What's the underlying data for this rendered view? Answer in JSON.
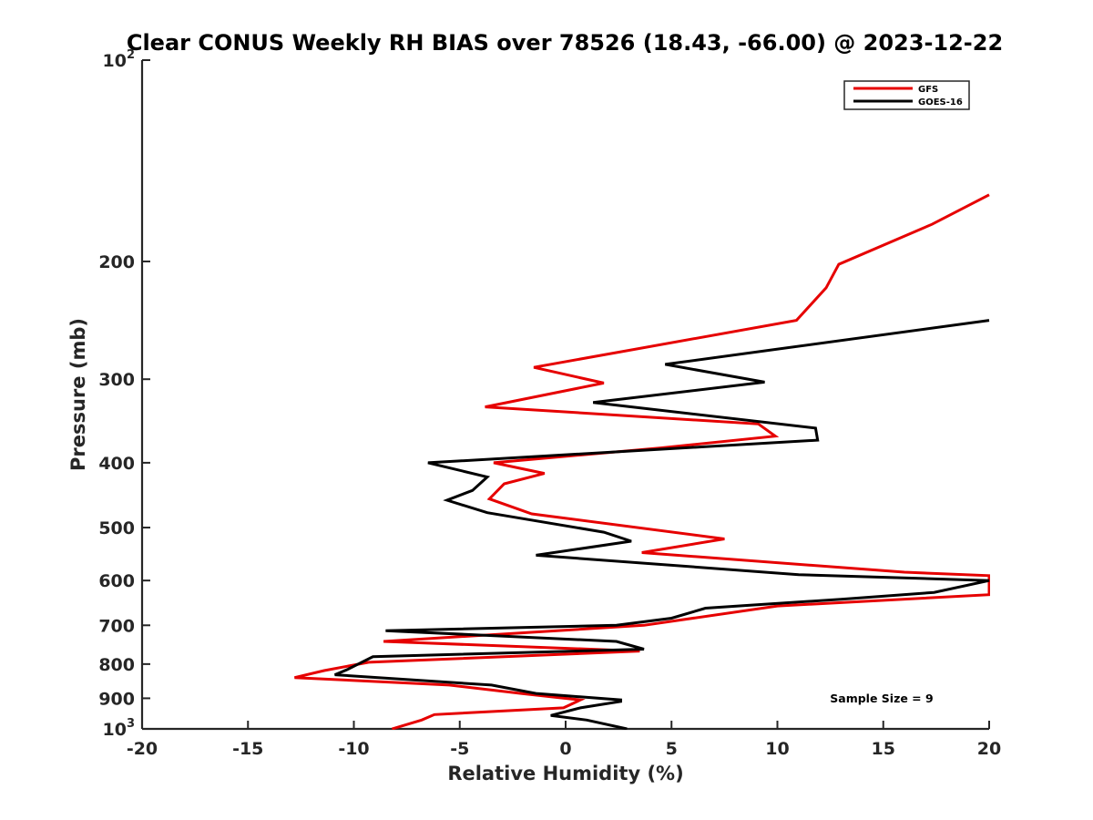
{
  "chart_data": {
    "type": "line",
    "title": "Clear CONUS Weekly RH BIAS over 78526 (18.43, -66.00) @ 2023-12-22",
    "xlabel": "Relative Humidity (%)",
    "ylabel": "Pressure (mb)",
    "xlim": [
      -20,
      20
    ],
    "ylim": [
      1000,
      100
    ],
    "yscale": "log",
    "y_reversed": true,
    "x_ticks": [
      -20,
      -15,
      -10,
      -5,
      0,
      5,
      10,
      15,
      20
    ],
    "x_tick_labels": [
      "-20",
      "-15",
      "-10",
      "-5",
      "0",
      "5",
      "10",
      "15",
      "20"
    ],
    "y_ticks": [
      100,
      200,
      300,
      400,
      500,
      600,
      700,
      800,
      900,
      1000
    ],
    "y_tick_labels": [
      {
        "base": "10",
        "sup": "2"
      },
      {
        "base": "200",
        "sup": ""
      },
      {
        "base": "300",
        "sup": ""
      },
      {
        "base": "400",
        "sup": ""
      },
      {
        "base": "500",
        "sup": ""
      },
      {
        "base": "600",
        "sup": ""
      },
      {
        "base": "700",
        "sup": ""
      },
      {
        "base": "800",
        "sup": ""
      },
      {
        "base": "900",
        "sup": ""
      },
      {
        "base": "10",
        "sup": "3"
      }
    ],
    "grid": false,
    "legend_position": "top-right",
    "annotation": "Sample Size = 9",
    "series": [
      {
        "name": "GFS",
        "color": "#e60000",
        "points": [
          [
            20,
            159
          ],
          [
            17.3,
            176
          ],
          [
            12.9,
            202
          ],
          [
            12.3,
            219
          ],
          [
            10.9,
            245
          ],
          [
            -1.5,
            288
          ],
          [
            1.8,
            304
          ],
          [
            -3.8,
            330
          ],
          [
            9.1,
            350
          ],
          [
            9.9,
            365
          ],
          [
            4.5,
            380
          ],
          [
            -3.4,
            400
          ],
          [
            -1.0,
            415
          ],
          [
            -2.9,
            430
          ],
          [
            -3.6,
            453
          ],
          [
            -1.6,
            477
          ],
          [
            7.5,
            520
          ],
          [
            3.6,
            545
          ],
          [
            16.0,
            583
          ],
          [
            20.0,
            590
          ],
          [
            20.0,
            630
          ],
          [
            10.0,
            655
          ],
          [
            3.7,
            700
          ],
          [
            -8.6,
            740
          ],
          [
            3.5,
            765
          ],
          [
            -9.3,
            795
          ],
          [
            -11.4,
            818
          ],
          [
            -12.8,
            838
          ],
          [
            -5.5,
            860
          ],
          [
            -2.1,
            885
          ],
          [
            -0.5,
            897
          ],
          [
            0.7,
            905
          ],
          [
            -0.1,
            930
          ],
          [
            -6.2,
            952
          ],
          [
            -6.8,
            970
          ],
          [
            -8.2,
            1000
          ]
        ]
      },
      {
        "name": "GOES-16",
        "color": "#000000",
        "points": [
          [
            20,
            245
          ],
          [
            4.7,
            285
          ],
          [
            9.4,
            303
          ],
          [
            1.3,
            325
          ],
          [
            11.8,
            355
          ],
          [
            11.9,
            370
          ],
          [
            -6.5,
            400
          ],
          [
            -3.7,
            420
          ],
          [
            -4.4,
            440
          ],
          [
            -5.6,
            455
          ],
          [
            -3.7,
            475
          ],
          [
            1.8,
            508
          ],
          [
            3.1,
            524
          ],
          [
            -1.4,
            550
          ],
          [
            11.0,
            588
          ],
          [
            20.0,
            600
          ],
          [
            17.4,
            625
          ],
          [
            13.0,
            640
          ],
          [
            6.6,
            660
          ],
          [
            5.0,
            683
          ],
          [
            2.4,
            700
          ],
          [
            -8.5,
            713
          ],
          [
            2.4,
            740
          ],
          [
            3.7,
            760
          ],
          [
            -9.1,
            780
          ],
          [
            -10.3,
            815
          ],
          [
            -10.9,
            830
          ],
          [
            -3.5,
            860
          ],
          [
            -1.4,
            885
          ],
          [
            2.6,
            905
          ],
          [
            2.6,
            910
          ],
          [
            0.7,
            930
          ],
          [
            -0.7,
            955
          ],
          [
            1.0,
            970
          ],
          [
            2.9,
            1000
          ]
        ]
      }
    ]
  }
}
